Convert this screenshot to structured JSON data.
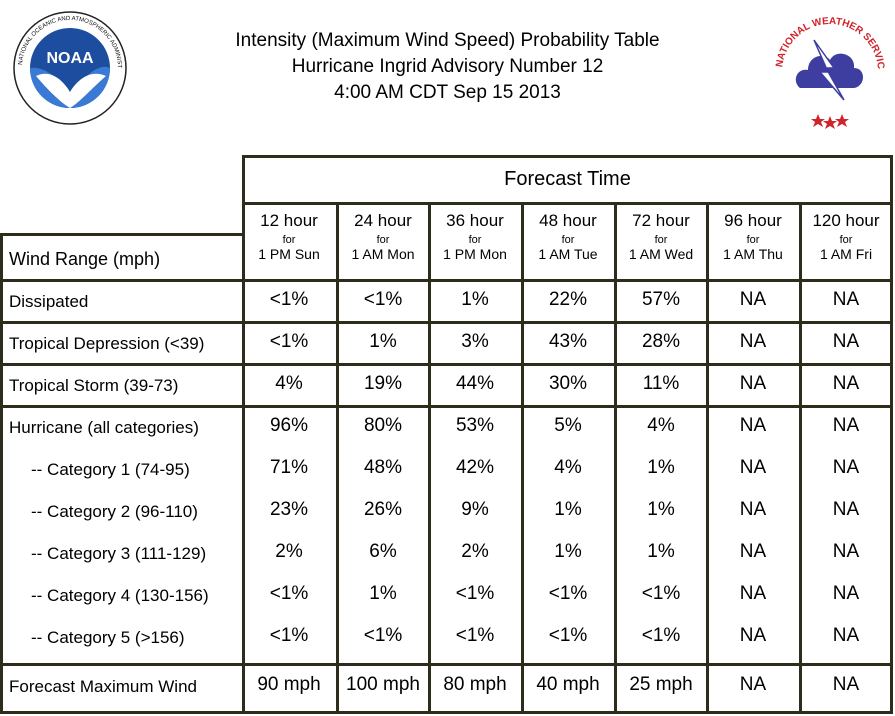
{
  "header": {
    "line1": "Intensity (Maximum Wind Speed) Probability Table",
    "line2": "Hurricane Ingrid Advisory Number 12",
    "line3": "4:00 AM CDT Sep 15 2013"
  },
  "logos": {
    "left": {
      "icon": "noaa-logo",
      "text": "NOAA",
      "ring_text": "NATIONAL OCEANIC AND ATMOSPHERIC ADMINISTRATION · U.S. DEPARTMENT OF COMMERCE"
    },
    "right": {
      "icon": "nws-logo",
      "ring_text": "NATIONAL WEATHER SERVICE"
    }
  },
  "table": {
    "forecast_time_label": "Forecast Time",
    "row_header_label": "Wind Range (mph)",
    "columns": [
      {
        "hours": "12 hour",
        "for": "for",
        "time": "1 PM Sun"
      },
      {
        "hours": "24 hour",
        "for": "for",
        "time": "1 AM Mon"
      },
      {
        "hours": "36 hour",
        "for": "for",
        "time": "1 PM Mon"
      },
      {
        "hours": "48 hour",
        "for": "for",
        "time": "1 AM Tue"
      },
      {
        "hours": "72 hour",
        "for": "for",
        "time": "1 AM Wed"
      },
      {
        "hours": "96 hour",
        "for": "for",
        "time": "1 AM Thu"
      },
      {
        "hours": "120 hour",
        "for": "for",
        "time": "1 AM Fri"
      }
    ],
    "rows": [
      {
        "label": "Dissipated",
        "values": [
          "<1%",
          "<1%",
          "1%",
          "22%",
          "57%",
          "NA",
          "NA"
        ]
      },
      {
        "label": "Tropical Depression (<39)",
        "values": [
          "<1%",
          "1%",
          "3%",
          "43%",
          "28%",
          "NA",
          "NA"
        ]
      },
      {
        "label": "Tropical Storm (39-73)",
        "values": [
          "4%",
          "19%",
          "44%",
          "30%",
          "11%",
          "NA",
          "NA"
        ]
      },
      {
        "label": "Hurricane (all categories)",
        "values": [
          "96%",
          "80%",
          "53%",
          "5%",
          "4%",
          "NA",
          "NA"
        ]
      },
      {
        "label": "-- Category 1 (74-95)",
        "values": [
          "71%",
          "48%",
          "42%",
          "4%",
          "1%",
          "NA",
          "NA"
        ]
      },
      {
        "label": "-- Category 2 (96-110)",
        "values": [
          "23%",
          "26%",
          "9%",
          "1%",
          "1%",
          "NA",
          "NA"
        ]
      },
      {
        "label": "-- Category 3 (111-129)",
        "values": [
          "2%",
          "6%",
          "2%",
          "1%",
          "1%",
          "NA",
          "NA"
        ]
      },
      {
        "label": "-- Category 4 (130-156)",
        "values": [
          "<1%",
          "1%",
          "<1%",
          "<1%",
          "<1%",
          "NA",
          "NA"
        ]
      },
      {
        "label": "-- Category 5 (>156)",
        "values": [
          "<1%",
          "<1%",
          "<1%",
          "<1%",
          "<1%",
          "NA",
          "NA"
        ]
      }
    ],
    "max_wind": {
      "label": "Forecast Maximum Wind",
      "values": [
        "90 mph",
        "100 mph",
        "80 mph",
        "40 mph",
        "25 mph",
        "NA",
        "NA"
      ]
    }
  }
}
